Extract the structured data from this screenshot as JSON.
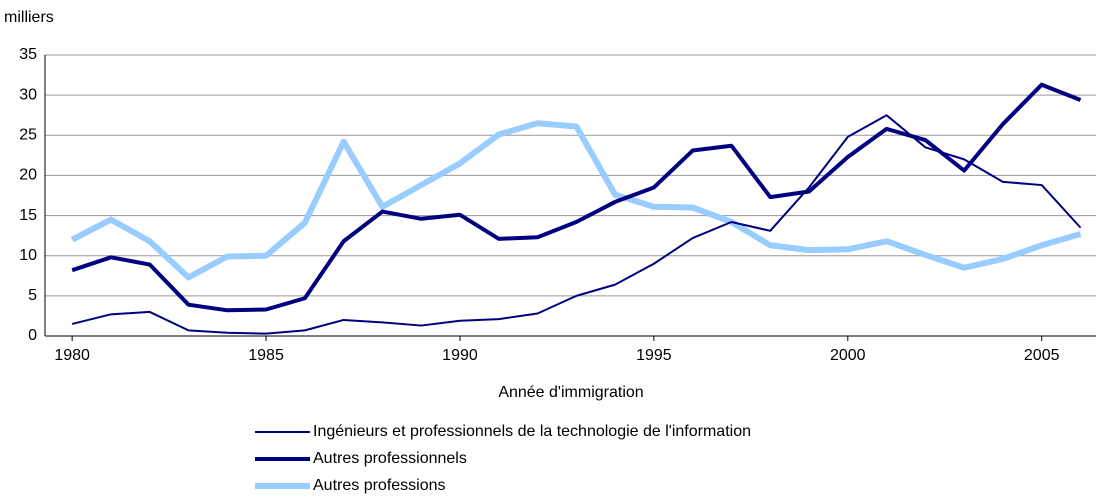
{
  "chart_data": {
    "type": "line",
    "y_axis_label": "milliers",
    "x_axis_label": "Année d'immigration",
    "x": [
      1980,
      1981,
      1982,
      1983,
      1984,
      1985,
      1986,
      1987,
      1988,
      1989,
      1990,
      1991,
      1992,
      1993,
      1994,
      1995,
      1996,
      1997,
      1998,
      1999,
      2000,
      2001,
      2002,
      2003,
      2004,
      2005,
      2006
    ],
    "xlim": [
      1979.3,
      2006.4
    ],
    "xticks": [
      1980,
      1985,
      1990,
      1995,
      2000,
      2005
    ],
    "ylim": [
      0,
      35
    ],
    "yticks": [
      0,
      5,
      10,
      15,
      20,
      25,
      30,
      35
    ],
    "grid": true,
    "legend": "bottom",
    "series": [
      {
        "name": "Ingénieurs et professionnels de la technologie de l'information",
        "color": "#000080",
        "width": 2,
        "values": [
          1.5,
          2.7,
          3.0,
          0.7,
          0.4,
          0.3,
          0.7,
          2.0,
          1.7,
          1.3,
          1.9,
          2.1,
          2.8,
          5.0,
          6.4,
          9.0,
          12.2,
          14.2,
          13.1,
          18.5,
          24.8,
          27.5,
          23.5,
          22.0,
          19.2,
          18.8,
          13.5
        ]
      },
      {
        "name": "Autres professionnels",
        "color": "#000080",
        "width": 4,
        "values": [
          8.2,
          9.8,
          8.9,
          3.9,
          3.2,
          3.3,
          4.7,
          11.8,
          15.5,
          14.6,
          15.1,
          12.1,
          12.3,
          14.2,
          16.7,
          18.5,
          23.1,
          23.7,
          17.3,
          18.0,
          22.3,
          25.8,
          24.4,
          20.6,
          26.4,
          31.3,
          29.4
        ]
      },
      {
        "name": "Autres professions",
        "color": "#99ccff",
        "width": 6,
        "values": [
          12.0,
          14.5,
          11.8,
          7.3,
          9.9,
          10.0,
          14.1,
          24.2,
          16.1,
          18.8,
          21.5,
          25.1,
          26.5,
          26.1,
          17.6,
          16.1,
          16.0,
          14.2,
          11.3,
          10.7,
          10.8,
          11.8,
          10.1,
          8.5,
          9.6,
          11.3,
          12.7
        ]
      }
    ]
  }
}
